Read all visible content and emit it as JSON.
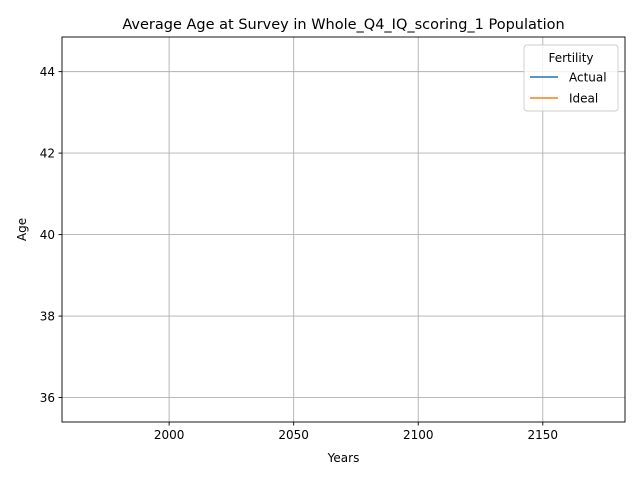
{
  "chart_data": {
    "type": "line",
    "title": "Average Age at Survey in Whole_Q4_IQ_scoring_1 Population",
    "xlabel": "Years",
    "ylabel": "Age",
    "xlim": [
      1957,
      2183
    ],
    "ylim": [
      35.4,
      44.85
    ],
    "xticks": [
      2000,
      2050,
      2100,
      2150
    ],
    "yticks": [
      36,
      38,
      40,
      42,
      44
    ],
    "grid": true,
    "legend": {
      "title": "Fertility",
      "placement": "top-right"
    },
    "series": [
      {
        "name": "Actual",
        "color": "#1f77b4",
        "x": [],
        "y": []
      },
      {
        "name": "Ideal",
        "color": "#ff7f0e",
        "x": [],
        "y": []
      }
    ]
  }
}
